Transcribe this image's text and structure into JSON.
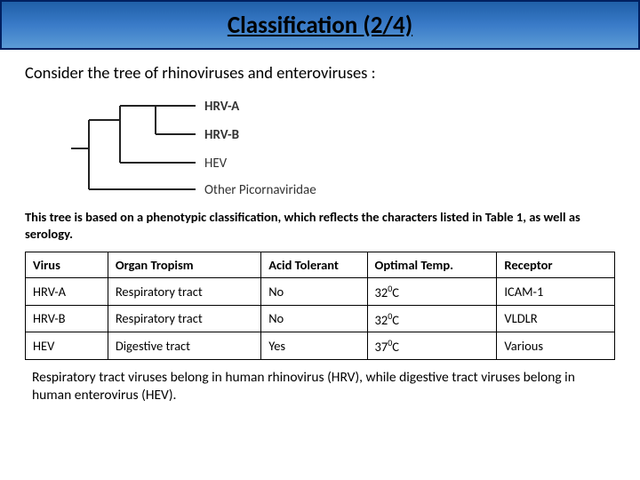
{
  "title": "Classification (2/4)",
  "intro": "Consider the tree of rhinoviruses and enteroviruses :",
  "tree": {
    "leaves": [
      "HRV-A",
      "HRV-B",
      "HEV",
      "Other Picornaviridae"
    ],
    "bold_leaves": [
      true,
      true,
      false,
      false
    ],
    "line_color": "#222222",
    "label_color": "#333333"
  },
  "caption": "This tree is based on a phenotypic classification, which reflects the characters listed in Table 1, as well as serology.",
  "table": {
    "headers": [
      "Virus",
      "Organ Tropism",
      "Acid Tolerant",
      "Optimal Temp.",
      "Receptor"
    ],
    "rows": [
      [
        "HRV-A",
        "Respiratory tract",
        "No",
        {
          "val": "32",
          "sup": "0",
          "suffix": "C"
        },
        "ICAM-1"
      ],
      [
        "HRV-B",
        "Respiratory tract",
        "No",
        {
          "val": "32",
          "sup": "0",
          "suffix": "C"
        },
        "VLDLR"
      ],
      [
        "HEV",
        "Digestive tract",
        "Yes",
        {
          "val": "37",
          "sup": "0",
          "suffix": "C"
        },
        "Various"
      ]
    ],
    "col_widths": [
      "14%",
      "26%",
      "18%",
      "22%",
      "20%"
    ],
    "border_color": "#000000"
  },
  "footer": "Respiratory tract viruses belong in human rhinovirus (HRV), while digestive tract viruses belong in human enterovirus (HEV)."
}
